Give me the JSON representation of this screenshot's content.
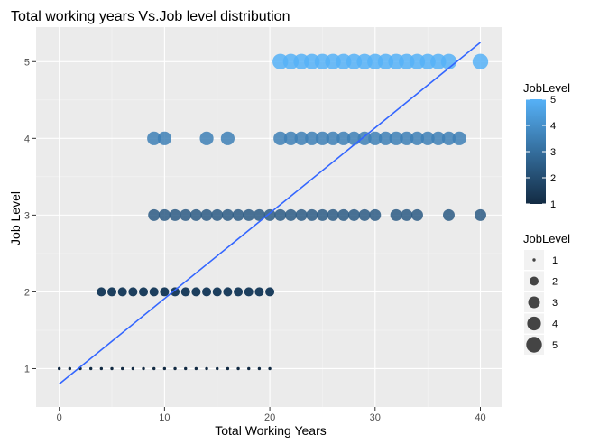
{
  "chart_data": {
    "type": "scatter",
    "title": "Total working years Vs.Job level distribution",
    "xlabel": "Total Working Years",
    "ylabel": "Job Level",
    "xlim": [
      -2.2,
      42.1
    ],
    "ylim": [
      0.5,
      5.45
    ],
    "x_ticks": [
      0,
      10,
      20,
      30,
      40
    ],
    "y_ticks": [
      1,
      2,
      3,
      4,
      5
    ],
    "grid": true,
    "legend_position": "right",
    "colors": {
      "panel_background": "#EBEBEB",
      "grid_major": "#FFFFFF",
      "level_colors": {
        "1": "#132B43",
        "2": "#1D3F5E",
        "3": "#2C5A84",
        "4": "#3E80B6",
        "5": "#56B1F7"
      },
      "trend_line": "#3366FF"
    },
    "series": [
      {
        "job_level": 1,
        "x": [
          0,
          1,
          2,
          3,
          4,
          5,
          6,
          7,
          8,
          9,
          10,
          11,
          12,
          13,
          14,
          15,
          16,
          17,
          18,
          19,
          20
        ]
      },
      {
        "job_level": 2,
        "x": [
          4,
          5,
          6,
          7,
          8,
          9,
          10,
          11,
          12,
          13,
          14,
          15,
          16,
          17,
          18,
          19,
          20
        ]
      },
      {
        "job_level": 3,
        "x": [
          9,
          10,
          11,
          12,
          13,
          14,
          15,
          16,
          17,
          18,
          19,
          20,
          21,
          22,
          23,
          24,
          25,
          26,
          27,
          28,
          29,
          30,
          32,
          33,
          34,
          37,
          40
        ]
      },
      {
        "job_level": 4,
        "x": [
          9,
          10,
          14,
          16,
          21,
          22,
          23,
          24,
          25,
          26,
          27,
          28,
          29,
          30,
          31,
          32,
          33,
          34,
          35,
          36,
          37,
          38
        ]
      },
      {
        "job_level": 5,
        "x": [
          21,
          22,
          23,
          24,
          25,
          26,
          27,
          28,
          29,
          30,
          31,
          32,
          33,
          34,
          35,
          36,
          37,
          40
        ]
      }
    ],
    "trend_line": {
      "x": [
        0,
        40
      ],
      "y": [
        0.8,
        5.25
      ]
    },
    "legends": [
      {
        "title": "JobLevel",
        "kind": "colorbar",
        "ticks": [
          1,
          2,
          3,
          4,
          5
        ],
        "labels": [
          "1",
          "2",
          "3",
          "4",
          "5"
        ]
      },
      {
        "title": "JobLevel",
        "kind": "size",
        "items": [
          1,
          2,
          3,
          4,
          5
        ],
        "labels": [
          "1",
          "2",
          "3",
          "4",
          "5"
        ]
      }
    ]
  }
}
